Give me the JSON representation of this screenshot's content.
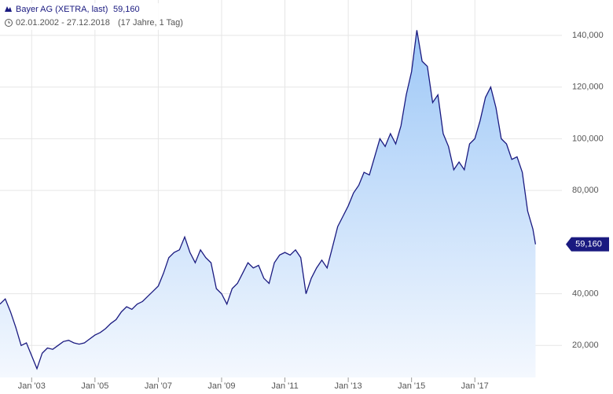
{
  "chart_data": {
    "type": "area",
    "title": "Bayer AG (XETRA, last)",
    "last_price": {
      "value": 59160,
      "label": "59,160"
    },
    "subtitle": "02.01.2002 - 27.12.2018",
    "duration": "(17 Jahre, 1 Tag)",
    "x": [
      "2002-01",
      "2002-03",
      "2002-05",
      "2002-07",
      "2002-09",
      "2002-11",
      "2003-01",
      "2003-03",
      "2003-05",
      "2003-07",
      "2003-09",
      "2003-11",
      "2004-01",
      "2004-03",
      "2004-05",
      "2004-07",
      "2004-09",
      "2004-11",
      "2005-01",
      "2005-03",
      "2005-05",
      "2005-07",
      "2005-09",
      "2005-11",
      "2006-01",
      "2006-03",
      "2006-05",
      "2006-07",
      "2006-09",
      "2006-11",
      "2007-01",
      "2007-03",
      "2007-05",
      "2007-07",
      "2007-09",
      "2007-11",
      "2008-01",
      "2008-03",
      "2008-05",
      "2008-07",
      "2008-09",
      "2008-11",
      "2009-01",
      "2009-03",
      "2009-05",
      "2009-07",
      "2009-09",
      "2009-11",
      "2010-01",
      "2010-03",
      "2010-05",
      "2010-07",
      "2010-09",
      "2010-11",
      "2011-01",
      "2011-03",
      "2011-05",
      "2011-07",
      "2011-09",
      "2011-11",
      "2012-01",
      "2012-03",
      "2012-05",
      "2012-07",
      "2012-09",
      "2012-11",
      "2013-01",
      "2013-03",
      "2013-05",
      "2013-07",
      "2013-09",
      "2013-11",
      "2014-01",
      "2014-03",
      "2014-05",
      "2014-07",
      "2014-09",
      "2014-11",
      "2015-01",
      "2015-03",
      "2015-05",
      "2015-07",
      "2015-09",
      "2015-11",
      "2016-01",
      "2016-03",
      "2016-05",
      "2016-07",
      "2016-09",
      "2016-11",
      "2017-01",
      "2017-03",
      "2017-05",
      "2017-07",
      "2017-09",
      "2017-11",
      "2018-01",
      "2018-03",
      "2018-05",
      "2018-07",
      "2018-09",
      "2018-11",
      "2018-12"
    ],
    "series": [
      {
        "name": "Bayer AG",
        "color": "#1a1a80",
        "values": [
          36000,
          38000,
          33000,
          27000,
          20000,
          21000,
          16000,
          11000,
          17000,
          19000,
          18500,
          20000,
          21500,
          22000,
          21000,
          20500,
          21000,
          22500,
          24000,
          25000,
          26500,
          28500,
          30000,
          33000,
          35000,
          34000,
          36000,
          37000,
          39000,
          41000,
          43000,
          48000,
          54000,
          56000,
          57000,
          62000,
          56000,
          52000,
          57000,
          54000,
          52000,
          42000,
          40000,
          36000,
          42000,
          44000,
          48000,
          52000,
          50000,
          51000,
          46000,
          44000,
          52000,
          55000,
          56000,
          55000,
          57000,
          54000,
          40000,
          46000,
          50000,
          53000,
          50000,
          58000,
          66000,
          70000,
          74000,
          79000,
          82000,
          87000,
          86000,
          93000,
          100000,
          97000,
          102000,
          98000,
          105000,
          117000,
          126000,
          142000,
          130000,
          128000,
          114000,
          117000,
          102000,
          97000,
          88000,
          91000,
          88000,
          98000,
          100000,
          107000,
          116000,
          120000,
          112000,
          100000,
          98000,
          92000,
          93000,
          87000,
          72000,
          65000,
          59160
        ]
      }
    ],
    "xlim": [
      "2002-01",
      "2019-10"
    ],
    "xticks": [
      {
        "value": "2003-01",
        "label": "Jan '03"
      },
      {
        "value": "2005-01",
        "label": "Jan '05"
      },
      {
        "value": "2007-01",
        "label": "Jan '07"
      },
      {
        "value": "2009-01",
        "label": "Jan '09"
      },
      {
        "value": "2011-01",
        "label": "Jan '11"
      },
      {
        "value": "2013-01",
        "label": "Jan '13"
      },
      {
        "value": "2015-01",
        "label": "Jan '15"
      },
      {
        "value": "2017-01",
        "label": "Jan '17"
      }
    ],
    "ylim": [
      7600,
      153700
    ],
    "yticks": [
      {
        "value": 20000,
        "label": "20,000"
      },
      {
        "value": 40000,
        "label": "40,000"
      },
      {
        "value": 80000,
        "label": "80,000"
      },
      {
        "value": 100000,
        "label": "100,000"
      },
      {
        "value": 120000,
        "label": "120,000"
      },
      {
        "value": 140000,
        "label": "140,000"
      }
    ],
    "grid": true
  }
}
